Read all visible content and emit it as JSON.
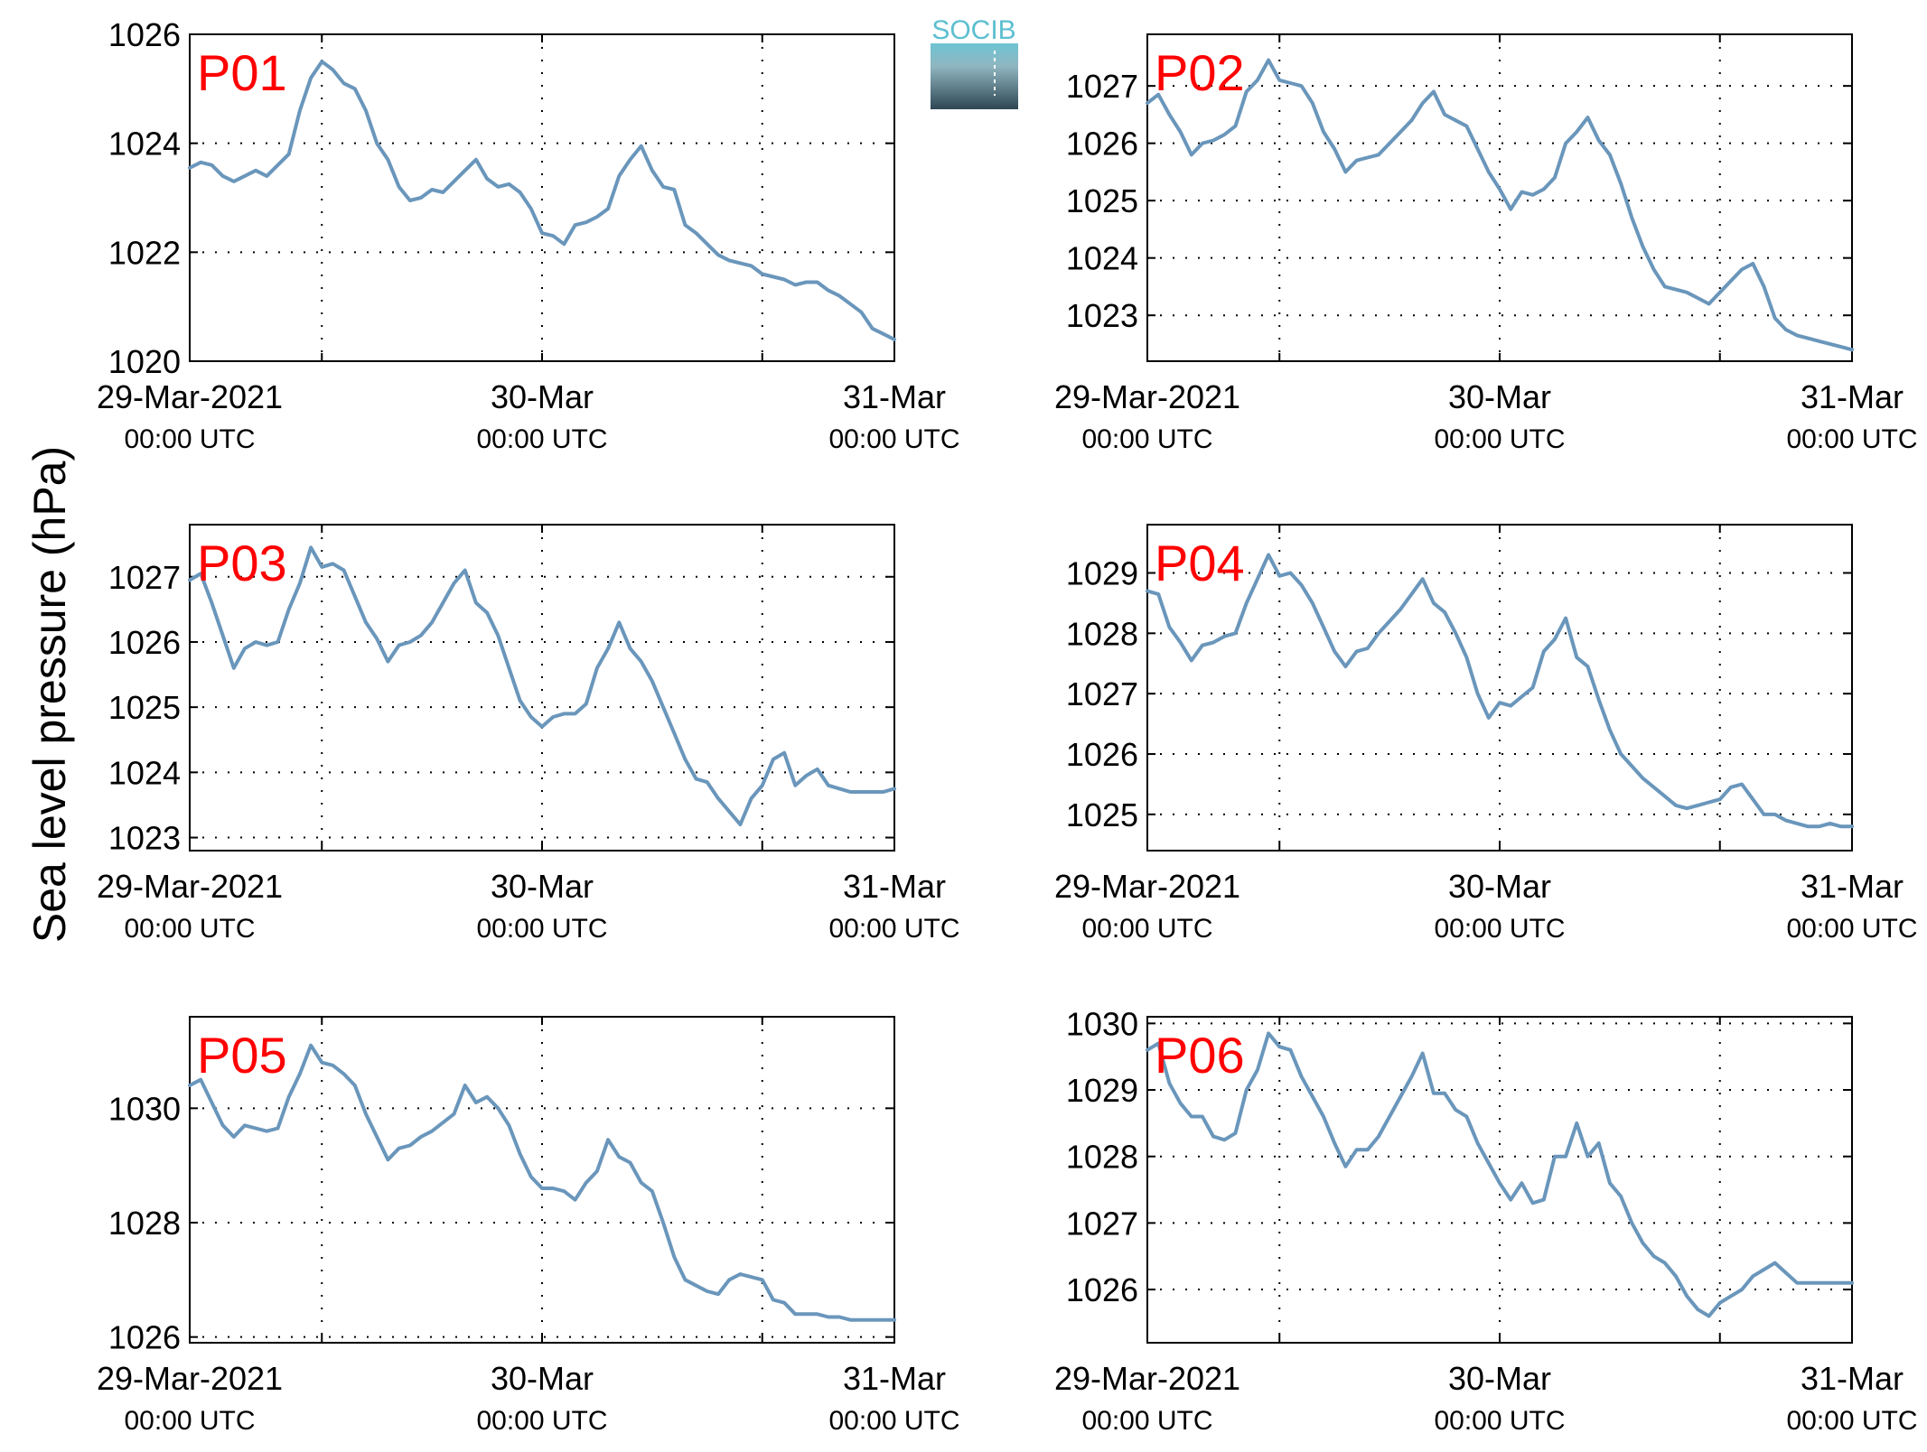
{
  "figure": {
    "ylabel": "Sea level pressure (hPa)",
    "logo_text": "SOCIB",
    "line_color": "#6a96bb",
    "label_color": "#ff0000",
    "grid": true,
    "x_ticks": [
      {
        "value": 0,
        "label": "29-Mar-2021",
        "sub": "00:00 UTC"
      },
      {
        "value": 24,
        "label": "30-Mar",
        "sub": "00:00 UTC"
      },
      {
        "value": 48,
        "label": "31-Mar",
        "sub": "00:00 UTC"
      }
    ]
  },
  "chart_data": [
    {
      "type": "line",
      "name": "P01",
      "xlabel": "",
      "ylabel": "Sea level pressure (hPa)",
      "xlim": [
        0,
        48
      ],
      "ylim": [
        1020,
        1026
      ],
      "yticks": [
        1020,
        1022,
        1024,
        1026
      ],
      "x_unit": "hours since 29-Mar-2021 00:00 UTC",
      "x": [
        0,
        0.75,
        1.5,
        2.25,
        3,
        3.75,
        4.5,
        5.25,
        6,
        6.75,
        7.5,
        8.25,
        9,
        9.75,
        10.5,
        11.25,
        12,
        12.75,
        13.5,
        14.25,
        15,
        15.75,
        16.5,
        17.25,
        18,
        18.75,
        19.5,
        20.25,
        21,
        21.75,
        22.5,
        23.25,
        24,
        24.75,
        25.5,
        26.25,
        27,
        27.75,
        28.5,
        29.25,
        30,
        30.75,
        31.5,
        32.25,
        33,
        33.75,
        34.5,
        35.25,
        36,
        36.75,
        37.5,
        38.25,
        39,
        39.75,
        40.5,
        41.25,
        42,
        42.75,
        43.5,
        44.25,
        45,
        45.75,
        46.5,
        47.25,
        48
      ],
      "values": [
        1023.55,
        1023.65,
        1023.6,
        1023.4,
        1023.3,
        1023.4,
        1023.5,
        1023.4,
        1023.6,
        1023.8,
        1024.6,
        1025.2,
        1025.5,
        1025.35,
        1025.1,
        1025.0,
        1024.6,
        1024.0,
        1023.7,
        1023.2,
        1022.95,
        1023.0,
        1023.15,
        1023.1,
        1023.3,
        1023.5,
        1023.7,
        1023.35,
        1023.2,
        1023.25,
        1023.1,
        1022.8,
        1022.35,
        1022.3,
        1022.15,
        1022.5,
        1022.55,
        1022.65,
        1022.8,
        1023.4,
        1023.7,
        1023.95,
        1023.5,
        1023.2,
        1023.15,
        1022.5,
        1022.35,
        1022.15,
        1021.95,
        1021.85,
        1021.8,
        1021.75,
        1021.6,
        1021.55,
        1021.5,
        1021.4,
        1021.45,
        1021.45,
        1021.3,
        1021.2,
        1021.05,
        1020.9,
        1020.6,
        1020.5,
        1020.4
      ]
    },
    {
      "type": "line",
      "name": "P02",
      "xlabel": "",
      "ylabel": "Sea level pressure (hPa)",
      "xlim": [
        0,
        48
      ],
      "ylim": [
        1022.2,
        1027.9
      ],
      "yticks": [
        1023,
        1024,
        1025,
        1026,
        1027
      ],
      "x_unit": "hours since 29-Mar-2021 00:00 UTC",
      "x": [
        0,
        0.75,
        1.5,
        2.25,
        3,
        3.75,
        4.5,
        5.25,
        6,
        6.75,
        7.5,
        8.25,
        9,
        9.75,
        10.5,
        11.25,
        12,
        12.75,
        13.5,
        14.25,
        15,
        15.75,
        16.5,
        17.25,
        18,
        18.75,
        19.5,
        20.25,
        21,
        21.75,
        22.5,
        23.25,
        24,
        24.75,
        25.5,
        26.25,
        27,
        27.75,
        28.5,
        29.25,
        30,
        30.75,
        31.5,
        32.25,
        33,
        33.75,
        34.5,
        35.25,
        36,
        36.75,
        37.5,
        38.25,
        39,
        39.75,
        40.5,
        41.25,
        42,
        42.75,
        43.5,
        44.25,
        45,
        45.75,
        46.5,
        47.25,
        48
      ],
      "values": [
        1026.7,
        1026.85,
        1026.5,
        1026.2,
        1025.8,
        1026.0,
        1026.05,
        1026.15,
        1026.3,
        1026.9,
        1027.1,
        1027.45,
        1027.1,
        1027.05,
        1027.0,
        1026.7,
        1026.2,
        1025.9,
        1025.5,
        1025.7,
        1025.75,
        1025.8,
        1026.0,
        1026.2,
        1026.4,
        1026.7,
        1026.9,
        1026.5,
        1026.4,
        1026.3,
        1025.9,
        1025.5,
        1025.2,
        1024.85,
        1025.15,
        1025.1,
        1025.2,
        1025.4,
        1026.0,
        1026.2,
        1026.45,
        1026.05,
        1025.8,
        1025.3,
        1024.7,
        1024.2,
        1023.8,
        1023.5,
        1023.45,
        1023.4,
        1023.3,
        1023.2,
        1023.4,
        1023.6,
        1023.8,
        1023.9,
        1023.5,
        1022.95,
        1022.75,
        1022.65,
        1022.6,
        1022.55,
        1022.5,
        1022.45,
        1022.4
      ]
    },
    {
      "type": "line",
      "name": "P03",
      "xlabel": "",
      "ylabel": "Sea level pressure (hPa)",
      "xlim": [
        0,
        48
      ],
      "ylim": [
        1022.8,
        1027.8
      ],
      "yticks": [
        1023,
        1024,
        1025,
        1026,
        1027
      ],
      "x_unit": "hours since 29-Mar-2021 00:00 UTC",
      "x": [
        0,
        0.75,
        1.5,
        2.25,
        3,
        3.75,
        4.5,
        5.25,
        6,
        6.75,
        7.5,
        8.25,
        9,
        9.75,
        10.5,
        11.25,
        12,
        12.75,
        13.5,
        14.25,
        15,
        15.75,
        16.5,
        17.25,
        18,
        18.75,
        19.5,
        20.25,
        21,
        21.75,
        22.5,
        23.25,
        24,
        24.75,
        25.5,
        26.25,
        27,
        27.75,
        28.5,
        29.25,
        30,
        30.75,
        31.5,
        32.25,
        33,
        33.75,
        34.5,
        35.25,
        36,
        36.75,
        37.5,
        38.25,
        39,
        39.75,
        40.5,
        41.25,
        42,
        42.75,
        43.5,
        44.25,
        45,
        45.75,
        46.5,
        47.25,
        48
      ],
      "values": [
        1026.95,
        1027.05,
        1026.6,
        1026.1,
        1025.6,
        1025.9,
        1026.0,
        1025.95,
        1026.0,
        1026.5,
        1026.9,
        1027.45,
        1027.15,
        1027.2,
        1027.1,
        1026.7,
        1026.3,
        1026.05,
        1025.7,
        1025.95,
        1026.0,
        1026.1,
        1026.3,
        1026.6,
        1026.9,
        1027.1,
        1026.6,
        1026.45,
        1026.1,
        1025.6,
        1025.1,
        1024.85,
        1024.7,
        1024.85,
        1024.9,
        1024.9,
        1025.05,
        1025.6,
        1025.9,
        1026.3,
        1025.9,
        1025.7,
        1025.4,
        1025.0,
        1024.6,
        1024.2,
        1023.9,
        1023.85,
        1023.6,
        1023.4,
        1023.2,
        1023.6,
        1023.8,
        1024.2,
        1024.3,
        1023.8,
        1023.95,
        1024.05,
        1023.8,
        1023.75,
        1023.7,
        1023.7,
        1023.7,
        1023.7,
        1023.75
      ]
    },
    {
      "type": "line",
      "name": "P04",
      "xlabel": "",
      "ylabel": "Sea level pressure (hPa)",
      "xlim": [
        0,
        48
      ],
      "ylim": [
        1024.4,
        1029.8
      ],
      "yticks": [
        1025,
        1026,
        1027,
        1028,
        1029
      ],
      "x_unit": "hours since 29-Mar-2021 00:00 UTC",
      "x": [
        0,
        0.75,
        1.5,
        2.25,
        3,
        3.75,
        4.5,
        5.25,
        6,
        6.75,
        7.5,
        8.25,
        9,
        9.75,
        10.5,
        11.25,
        12,
        12.75,
        13.5,
        14.25,
        15,
        15.75,
        16.5,
        17.25,
        18,
        18.75,
        19.5,
        20.25,
        21,
        21.75,
        22.5,
        23.25,
        24,
        24.75,
        25.5,
        26.25,
        27,
        27.75,
        28.5,
        29.25,
        30,
        30.75,
        31.5,
        32.25,
        33,
        33.75,
        34.5,
        35.25,
        36,
        36.75,
        37.5,
        38.25,
        39,
        39.75,
        40.5,
        41.25,
        42,
        42.75,
        43.5,
        44.25,
        45,
        45.75,
        46.5,
        47.25,
        48
      ],
      "values": [
        1028.7,
        1028.65,
        1028.1,
        1027.85,
        1027.55,
        1027.8,
        1027.85,
        1027.95,
        1028.0,
        1028.5,
        1028.9,
        1029.3,
        1028.95,
        1029.0,
        1028.8,
        1028.5,
        1028.1,
        1027.7,
        1027.45,
        1027.7,
        1027.75,
        1028.0,
        1028.2,
        1028.4,
        1028.65,
        1028.9,
        1028.5,
        1028.35,
        1028.0,
        1027.6,
        1027.0,
        1026.6,
        1026.85,
        1026.8,
        1026.95,
        1027.1,
        1027.7,
        1027.9,
        1028.25,
        1027.6,
        1027.45,
        1026.9,
        1026.4,
        1026.0,
        1025.8,
        1025.6,
        1025.45,
        1025.3,
        1025.15,
        1025.1,
        1025.15,
        1025.2,
        1025.25,
        1025.45,
        1025.5,
        1025.25,
        1025.0,
        1025.0,
        1024.9,
        1024.85,
        1024.8,
        1024.8,
        1024.85,
        1024.8,
        1024.8
      ]
    },
    {
      "type": "line",
      "name": "P05",
      "xlabel": "",
      "ylabel": "Sea level pressure (hPa)",
      "xlim": [
        0,
        48
      ],
      "ylim": [
        1025.9,
        1031.6
      ],
      "yticks": [
        1026,
        1028,
        1030
      ],
      "x_unit": "hours since 29-Mar-2021 00:00 UTC",
      "x": [
        0,
        0.75,
        1.5,
        2.25,
        3,
        3.75,
        4.5,
        5.25,
        6,
        6.75,
        7.5,
        8.25,
        9,
        9.75,
        10.5,
        11.25,
        12,
        12.75,
        13.5,
        14.25,
        15,
        15.75,
        16.5,
        17.25,
        18,
        18.75,
        19.5,
        20.25,
        21,
        21.75,
        22.5,
        23.25,
        24,
        24.75,
        25.5,
        26.25,
        27,
        27.75,
        28.5,
        29.25,
        30,
        30.75,
        31.5,
        32.25,
        33,
        33.75,
        34.5,
        35.25,
        36,
        36.75,
        37.5,
        38.25,
        39,
        39.75,
        40.5,
        41.25,
        42,
        42.75,
        43.5,
        44.25,
        45,
        45.75,
        46.5,
        47.25,
        48
      ],
      "values": [
        1030.4,
        1030.5,
        1030.1,
        1029.7,
        1029.5,
        1029.7,
        1029.65,
        1029.6,
        1029.65,
        1030.2,
        1030.6,
        1031.1,
        1030.8,
        1030.75,
        1030.6,
        1030.4,
        1029.9,
        1029.5,
        1029.1,
        1029.3,
        1029.35,
        1029.5,
        1029.6,
        1029.75,
        1029.9,
        1030.4,
        1030.1,
        1030.2,
        1030.0,
        1029.7,
        1029.2,
        1028.8,
        1028.6,
        1028.6,
        1028.55,
        1028.4,
        1028.7,
        1028.9,
        1029.45,
        1029.15,
        1029.05,
        1028.7,
        1028.55,
        1028.0,
        1027.4,
        1027.0,
        1026.9,
        1026.8,
        1026.75,
        1027.0,
        1027.1,
        1027.05,
        1027.0,
        1026.65,
        1026.6,
        1026.4,
        1026.4,
        1026.4,
        1026.35,
        1026.35,
        1026.3,
        1026.3,
        1026.3,
        1026.3,
        1026.3
      ]
    },
    {
      "type": "line",
      "name": "P06",
      "xlabel": "",
      "ylabel": "Sea level pressure (hPa)",
      "xlim": [
        0,
        48
      ],
      "ylim": [
        1025.2,
        1030.1
      ],
      "yticks": [
        1026,
        1027,
        1028,
        1029,
        1030
      ],
      "x_unit": "hours since 29-Mar-2021 00:00 UTC",
      "x": [
        0,
        0.75,
        1.5,
        2.25,
        3,
        3.75,
        4.5,
        5.25,
        6,
        6.75,
        7.5,
        8.25,
        9,
        9.75,
        10.5,
        11.25,
        12,
        12.75,
        13.5,
        14.25,
        15,
        15.75,
        16.5,
        17.25,
        18,
        18.75,
        19.5,
        20.25,
        21,
        21.75,
        22.5,
        23.25,
        24,
        24.75,
        25.5,
        26.25,
        27,
        27.75,
        28.5,
        29.25,
        30,
        30.75,
        31.5,
        32.25,
        33,
        33.75,
        34.5,
        35.25,
        36,
        36.75,
        37.5,
        38.25,
        39,
        39.75,
        40.5,
        41.25,
        42,
        42.75,
        43.5,
        44.25,
        45,
        45.75,
        46.5,
        47.25,
        48
      ],
      "values": [
        1029.6,
        1029.7,
        1029.1,
        1028.8,
        1028.6,
        1028.6,
        1028.3,
        1028.25,
        1028.35,
        1029.0,
        1029.3,
        1029.85,
        1029.65,
        1029.6,
        1029.2,
        1028.9,
        1028.6,
        1028.2,
        1027.85,
        1028.1,
        1028.1,
        1028.3,
        1028.6,
        1028.9,
        1029.2,
        1029.55,
        1028.95,
        1028.95,
        1028.7,
        1028.6,
        1028.2,
        1027.9,
        1027.6,
        1027.35,
        1027.6,
        1027.3,
        1027.35,
        1028.0,
        1028.0,
        1028.5,
        1028.0,
        1028.2,
        1027.6,
        1027.4,
        1027.0,
        1026.7,
        1026.5,
        1026.4,
        1026.2,
        1025.9,
        1025.7,
        1025.6,
        1025.8,
        1025.9,
        1026.0,
        1026.2,
        1026.3,
        1026.4,
        1026.25,
        1026.1,
        1026.1,
        1026.1,
        1026.1,
        1026.1,
        1026.1
      ]
    }
  ]
}
